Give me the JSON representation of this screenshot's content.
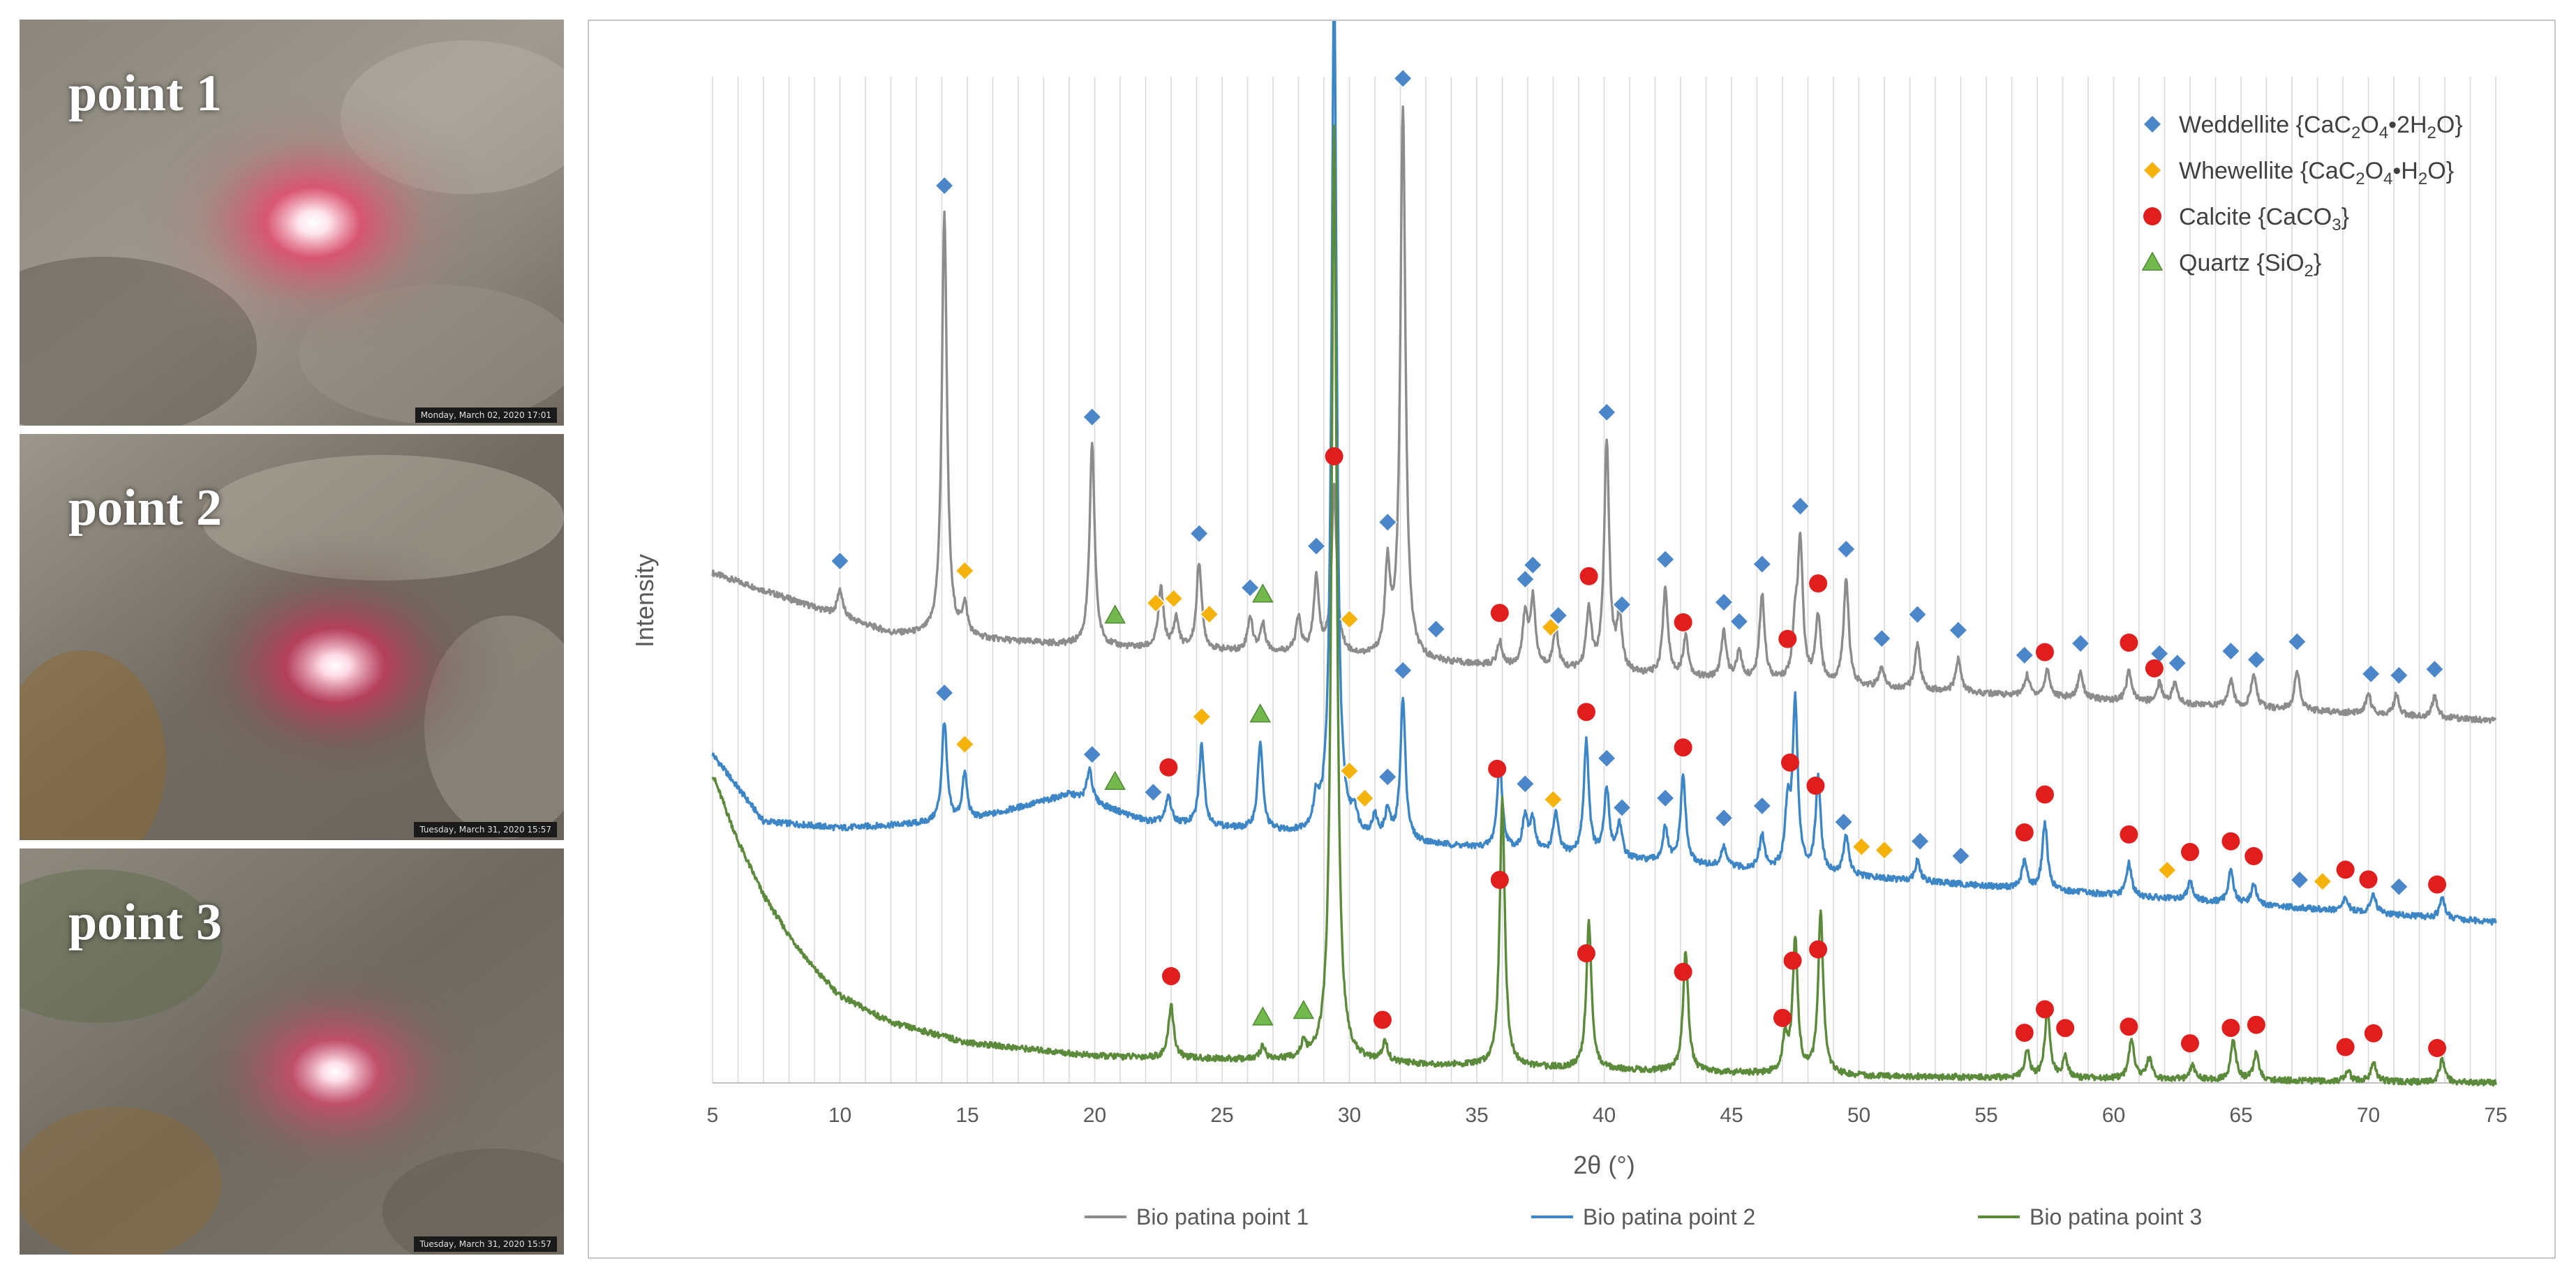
{
  "photos": [
    {
      "label": "point 1",
      "stamp": "Monday, March 02, 2020 17:01"
    },
    {
      "label": "point 2",
      "stamp": "Tuesday, March 31, 2020 15:57"
    },
    {
      "label": "point 3",
      "stamp": "Tuesday, March 31, 2020 15:57"
    }
  ],
  "colors": {
    "series1": "#8c8c8c",
    "series2": "#3d86c6",
    "series3": "#5b8a3a",
    "weddellite": "#4a86c8",
    "whewellite": "#f5b20b",
    "calcite": "#e01e1e",
    "quartz": "#72b84c"
  },
  "chart_data": {
    "type": "line",
    "xlabel": "2θ (°)",
    "ylabel": "Intensity",
    "xlim": [
      5,
      75
    ],
    "xticks": [
      5,
      10,
      15,
      20,
      25,
      30,
      35,
      40,
      45,
      50,
      55,
      60,
      65,
      70,
      75
    ],
    "grid": "vertical every 1°",
    "series": [
      {
        "name": "Bio patina point 1",
        "color": "#8c8c8c",
        "baseline": [
          [
            5,
            7.6
          ],
          [
            12,
            6.7
          ],
          [
            20,
            6.5
          ],
          [
            28,
            6.4
          ],
          [
            40,
            6.1
          ],
          [
            55,
            5.8
          ],
          [
            75,
            5.4
          ]
        ],
        "peaks": [
          [
            10.0,
            0.4
          ],
          [
            14.1,
            6.3
          ],
          [
            14.9,
            0.45
          ],
          [
            19.9,
            3.0
          ],
          [
            22.6,
            0.9
          ],
          [
            23.2,
            0.45
          ],
          [
            24.1,
            1.3
          ],
          [
            26.1,
            0.5
          ],
          [
            26.6,
            0.4
          ],
          [
            28.0,
            0.5
          ],
          [
            28.7,
            1.1
          ],
          [
            29.4,
            2.5
          ],
          [
            31.5,
            1.3
          ],
          [
            32.1,
            8.2
          ],
          [
            35.9,
            0.35
          ],
          [
            36.9,
            0.75
          ],
          [
            37.2,
            1.0
          ],
          [
            38.1,
            0.6
          ],
          [
            39.4,
            0.9
          ],
          [
            40.1,
            3.4
          ],
          [
            40.6,
            0.8
          ],
          [
            42.4,
            1.3
          ],
          [
            43.2,
            0.6
          ],
          [
            44.7,
            0.7
          ],
          [
            45.3,
            0.4
          ],
          [
            46.2,
            1.3
          ],
          [
            47.5,
            0.7
          ],
          [
            47.7,
            2.0
          ],
          [
            48.4,
            1.0
          ],
          [
            49.5,
            1.6
          ],
          [
            50.9,
            0.3
          ],
          [
            52.3,
            0.7
          ],
          [
            53.9,
            0.5
          ],
          [
            56.6,
            0.3
          ],
          [
            57.4,
            0.4
          ],
          [
            58.7,
            0.4
          ],
          [
            60.6,
            0.45
          ],
          [
            61.8,
            0.3
          ],
          [
            62.4,
            0.3
          ],
          [
            64.6,
            0.4
          ],
          [
            65.5,
            0.5
          ],
          [
            67.2,
            0.6
          ],
          [
            70.0,
            0.3
          ],
          [
            71.1,
            0.3
          ],
          [
            72.6,
            0.3
          ]
        ]
      },
      {
        "name": "Bio patina point 2",
        "color": "#3d86c6",
        "baseline": [
          [
            5,
            4.9
          ],
          [
            7,
            3.9
          ],
          [
            10,
            3.8
          ],
          [
            15,
            3.9
          ],
          [
            19,
            4.3
          ],
          [
            22,
            3.9
          ],
          [
            28,
            3.7
          ],
          [
            35,
            3.5
          ],
          [
            45,
            3.2
          ],
          [
            60,
            2.8
          ],
          [
            75,
            2.4
          ]
        ],
        "peaks": [
          [
            14.1,
            1.5
          ],
          [
            14.9,
            0.7
          ],
          [
            19.8,
            0.5
          ],
          [
            22.9,
            0.4
          ],
          [
            24.2,
            1.2
          ],
          [
            26.5,
            1.3
          ],
          [
            28.7,
            0.4
          ],
          [
            29.4,
            12.8
          ],
          [
            30.2,
            0.3
          ],
          [
            31.0,
            0.3
          ],
          [
            31.5,
            0.4
          ],
          [
            32.1,
            2.1
          ],
          [
            35.9,
            1.3
          ],
          [
            36.9,
            0.5
          ],
          [
            37.2,
            0.45
          ],
          [
            38.1,
            0.6
          ],
          [
            39.3,
            1.7
          ],
          [
            40.1,
            1.0
          ],
          [
            40.6,
            0.5
          ],
          [
            42.4,
            0.5
          ],
          [
            43.1,
            1.3
          ],
          [
            44.7,
            0.3
          ],
          [
            46.2,
            0.5
          ],
          [
            47.2,
            0.9
          ],
          [
            47.5,
            2.5
          ],
          [
            48.4,
            1.4
          ],
          [
            49.5,
            0.6
          ],
          [
            52.3,
            0.3
          ],
          [
            56.5,
            0.4
          ],
          [
            57.3,
            1.0
          ],
          [
            60.6,
            0.5
          ],
          [
            63.0,
            0.3
          ],
          [
            64.6,
            0.5
          ],
          [
            65.5,
            0.3
          ],
          [
            69.1,
            0.2
          ],
          [
            70.2,
            0.3
          ],
          [
            72.9,
            0.3
          ]
        ]
      },
      {
        "name": "Bio patina point 3",
        "color": "#5b8a3a",
        "baseline": [
          [
            5,
            4.6
          ],
          [
            6,
            3.6
          ],
          [
            7,
            2.8
          ],
          [
            8,
            2.2
          ],
          [
            9,
            1.7
          ],
          [
            10,
            1.3
          ],
          [
            12,
            0.9
          ],
          [
            15,
            0.6
          ],
          [
            20,
            0.4
          ],
          [
            30,
            0.3
          ],
          [
            50,
            0.1
          ],
          [
            75,
            0.0
          ]
        ],
        "peaks": [
          [
            23.0,
            0.8
          ],
          [
            26.6,
            0.2
          ],
          [
            28.2,
            0.2
          ],
          [
            29.4,
            14.0
          ],
          [
            31.4,
            0.3
          ],
          [
            36.0,
            4.0
          ],
          [
            39.4,
            2.2
          ],
          [
            43.2,
            1.8
          ],
          [
            47.1,
            0.5
          ],
          [
            47.5,
            2.0
          ],
          [
            48.5,
            2.4
          ],
          [
            56.6,
            0.4
          ],
          [
            57.4,
            1.0
          ],
          [
            58.1,
            0.3
          ],
          [
            60.7,
            0.6
          ],
          [
            61.4,
            0.3
          ],
          [
            63.1,
            0.2
          ],
          [
            64.7,
            0.6
          ],
          [
            65.6,
            0.4
          ],
          [
            69.2,
            0.15
          ],
          [
            70.2,
            0.3
          ],
          [
            72.9,
            0.35
          ]
        ]
      }
    ],
    "phase_markers": [
      {
        "phase": "weddellite",
        "series": 0,
        "x": [
          10.0,
          14.1,
          19.9,
          24.1,
          26.1,
          28.7,
          31.5,
          32.1,
          33.4,
          36.9,
          37.2,
          38.2,
          40.1,
          40.7,
          42.4,
          44.7,
          45.3,
          46.2,
          47.7,
          49.5,
          50.9,
          52.3,
          53.9,
          56.5,
          58.7,
          61.8,
          62.5,
          64.6,
          65.6,
          67.2,
          70.1,
          71.2,
          72.6
        ]
      },
      {
        "phase": "whewellite",
        "series": 0,
        "x": [
          14.9,
          22.4,
          23.1,
          24.5,
          30.0,
          37.9
        ]
      },
      {
        "phase": "calcite",
        "series": 0,
        "x": [
          29.4,
          35.9,
          39.4,
          43.1,
          47.2,
          48.4,
          57.3,
          60.6,
          61.6
        ]
      },
      {
        "phase": "quartz",
        "series": 0,
        "x": [
          20.8,
          26.6
        ]
      },
      {
        "phase": "weddellite",
        "series": 1,
        "x": [
          14.1,
          19.9,
          22.3,
          32.1,
          31.5,
          36.9,
          40.1,
          40.7,
          42.4,
          44.7,
          46.2,
          49.4,
          52.4,
          54.0,
          67.3,
          71.2
        ]
      },
      {
        "phase": "whewellite",
        "series": 1,
        "x": [
          14.9,
          24.2,
          30.0,
          30.6,
          38.0,
          50.1,
          51.0,
          62.1,
          68.2
        ]
      },
      {
        "phase": "calcite",
        "series": 1,
        "x": [
          22.9,
          35.8,
          39.3,
          43.1,
          47.3,
          48.3,
          56.5,
          57.3,
          60.6,
          63.0,
          64.6,
          65.5,
          69.1,
          70.0,
          72.7
        ]
      },
      {
        "phase": "quartz",
        "series": 1,
        "x": [
          20.8,
          26.5
        ]
      },
      {
        "phase": "calcite",
        "series": 2,
        "x": [
          23.0,
          31.3,
          35.9,
          39.3,
          43.1,
          47.0,
          47.4,
          48.4,
          56.5,
          57.3,
          58.1,
          60.6,
          63.0,
          64.6,
          65.6,
          69.1,
          70.2,
          72.7
        ]
      },
      {
        "phase": "quartz",
        "series": 2,
        "x": [
          26.6,
          28.2
        ]
      }
    ],
    "legend": {
      "position": "top-right",
      "entries": [
        {
          "key": "weddellite",
          "label": "Weddellite",
          "formula": [
            "CaC",
            "2",
            "O",
            "4",
            "•2H",
            "2",
            "O"
          ]
        },
        {
          "key": "whewellite",
          "label": "Whewellite",
          "formula": [
            "CaC",
            "2",
            "O",
            "4",
            "•H",
            "2",
            "O"
          ]
        },
        {
          "key": "calcite",
          "label": "Calcite",
          "formula": [
            "CaCO",
            "3",
            ""
          ]
        },
        {
          "key": "quartz",
          "label": "Quartz",
          "formula": [
            "SiO",
            "2",
            ""
          ]
        }
      ]
    },
    "bottom_legend": [
      "Bio patina point 1",
      "Bio patina point 2",
      "Bio patina point 3"
    ]
  }
}
